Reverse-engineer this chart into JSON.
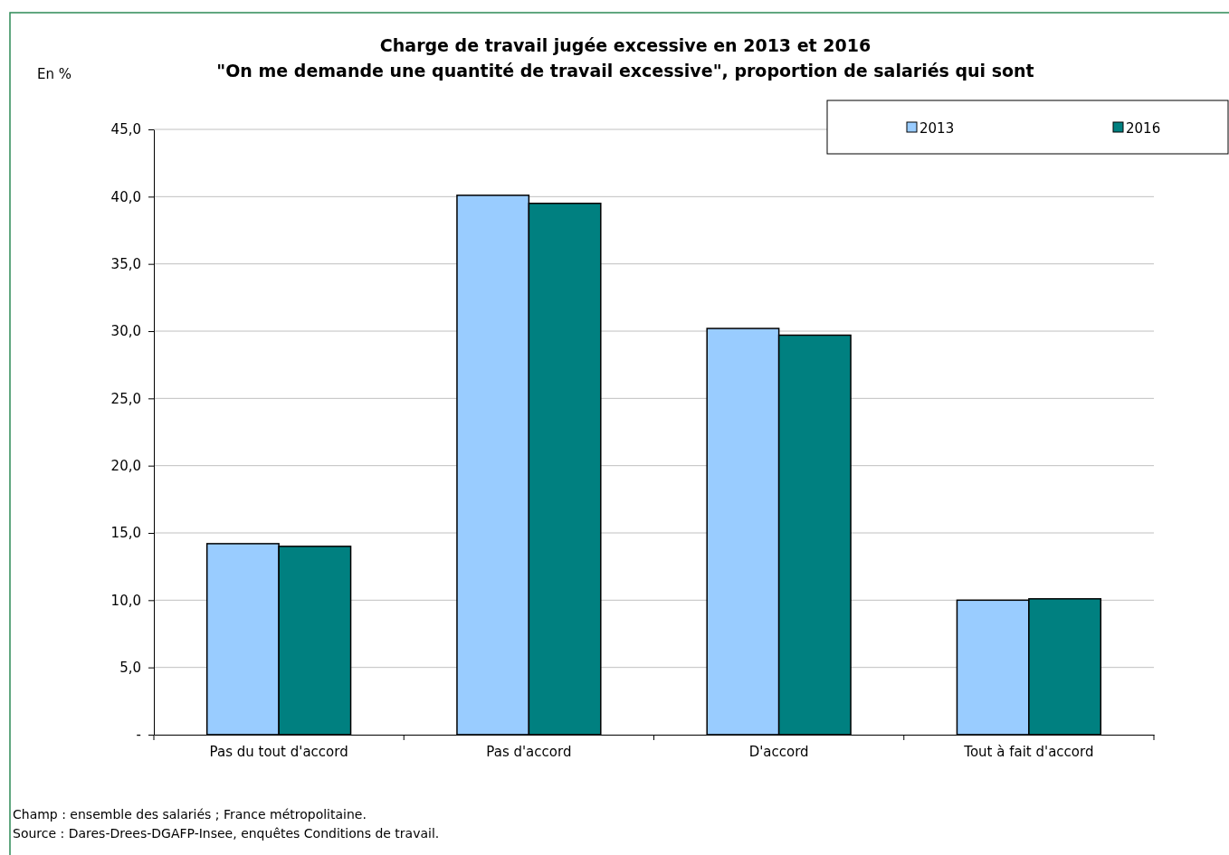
{
  "chart_data": {
    "type": "bar",
    "title": "Charge de travail jugée excessive en 2013 et 2016",
    "subtitle": "\"On me demande une quantité de travail excessive\", proportion de salariés qui sont",
    "ylabel": "En %",
    "categories": [
      "Pas du tout d'accord",
      "Pas d'accord",
      "D'accord",
      "Tout à fait d'accord"
    ],
    "series": [
      {
        "name": "2013",
        "color": "#99ccff",
        "values": [
          14.2,
          40.1,
          30.2,
          10.0
        ]
      },
      {
        "name": "2016",
        "color": "#008080",
        "values": [
          14.0,
          39.5,
          29.7,
          10.1
        ]
      }
    ],
    "ylim": [
      0,
      45
    ],
    "yticks": [
      {
        "value": 0,
        "label": "-"
      },
      {
        "value": 5,
        "label": "5,0"
      },
      {
        "value": 10,
        "label": "10,0"
      },
      {
        "value": 15,
        "label": "15,0"
      },
      {
        "value": 20,
        "label": "20,0"
      },
      {
        "value": 25,
        "label": "25,0"
      },
      {
        "value": 30,
        "label": "30,0"
      },
      {
        "value": 35,
        "label": "35,0"
      },
      {
        "value": 40,
        "label": "40,0"
      },
      {
        "value": 45,
        "label": "45,0"
      }
    ],
    "grid": "y",
    "legend": "top right",
    "annotations": [
      "Champ : ensemble des salariés ; France métropolitaine.",
      "Source : Dares-Drees-DGAFP-Insee, enquêtes Conditions de travail."
    ]
  }
}
